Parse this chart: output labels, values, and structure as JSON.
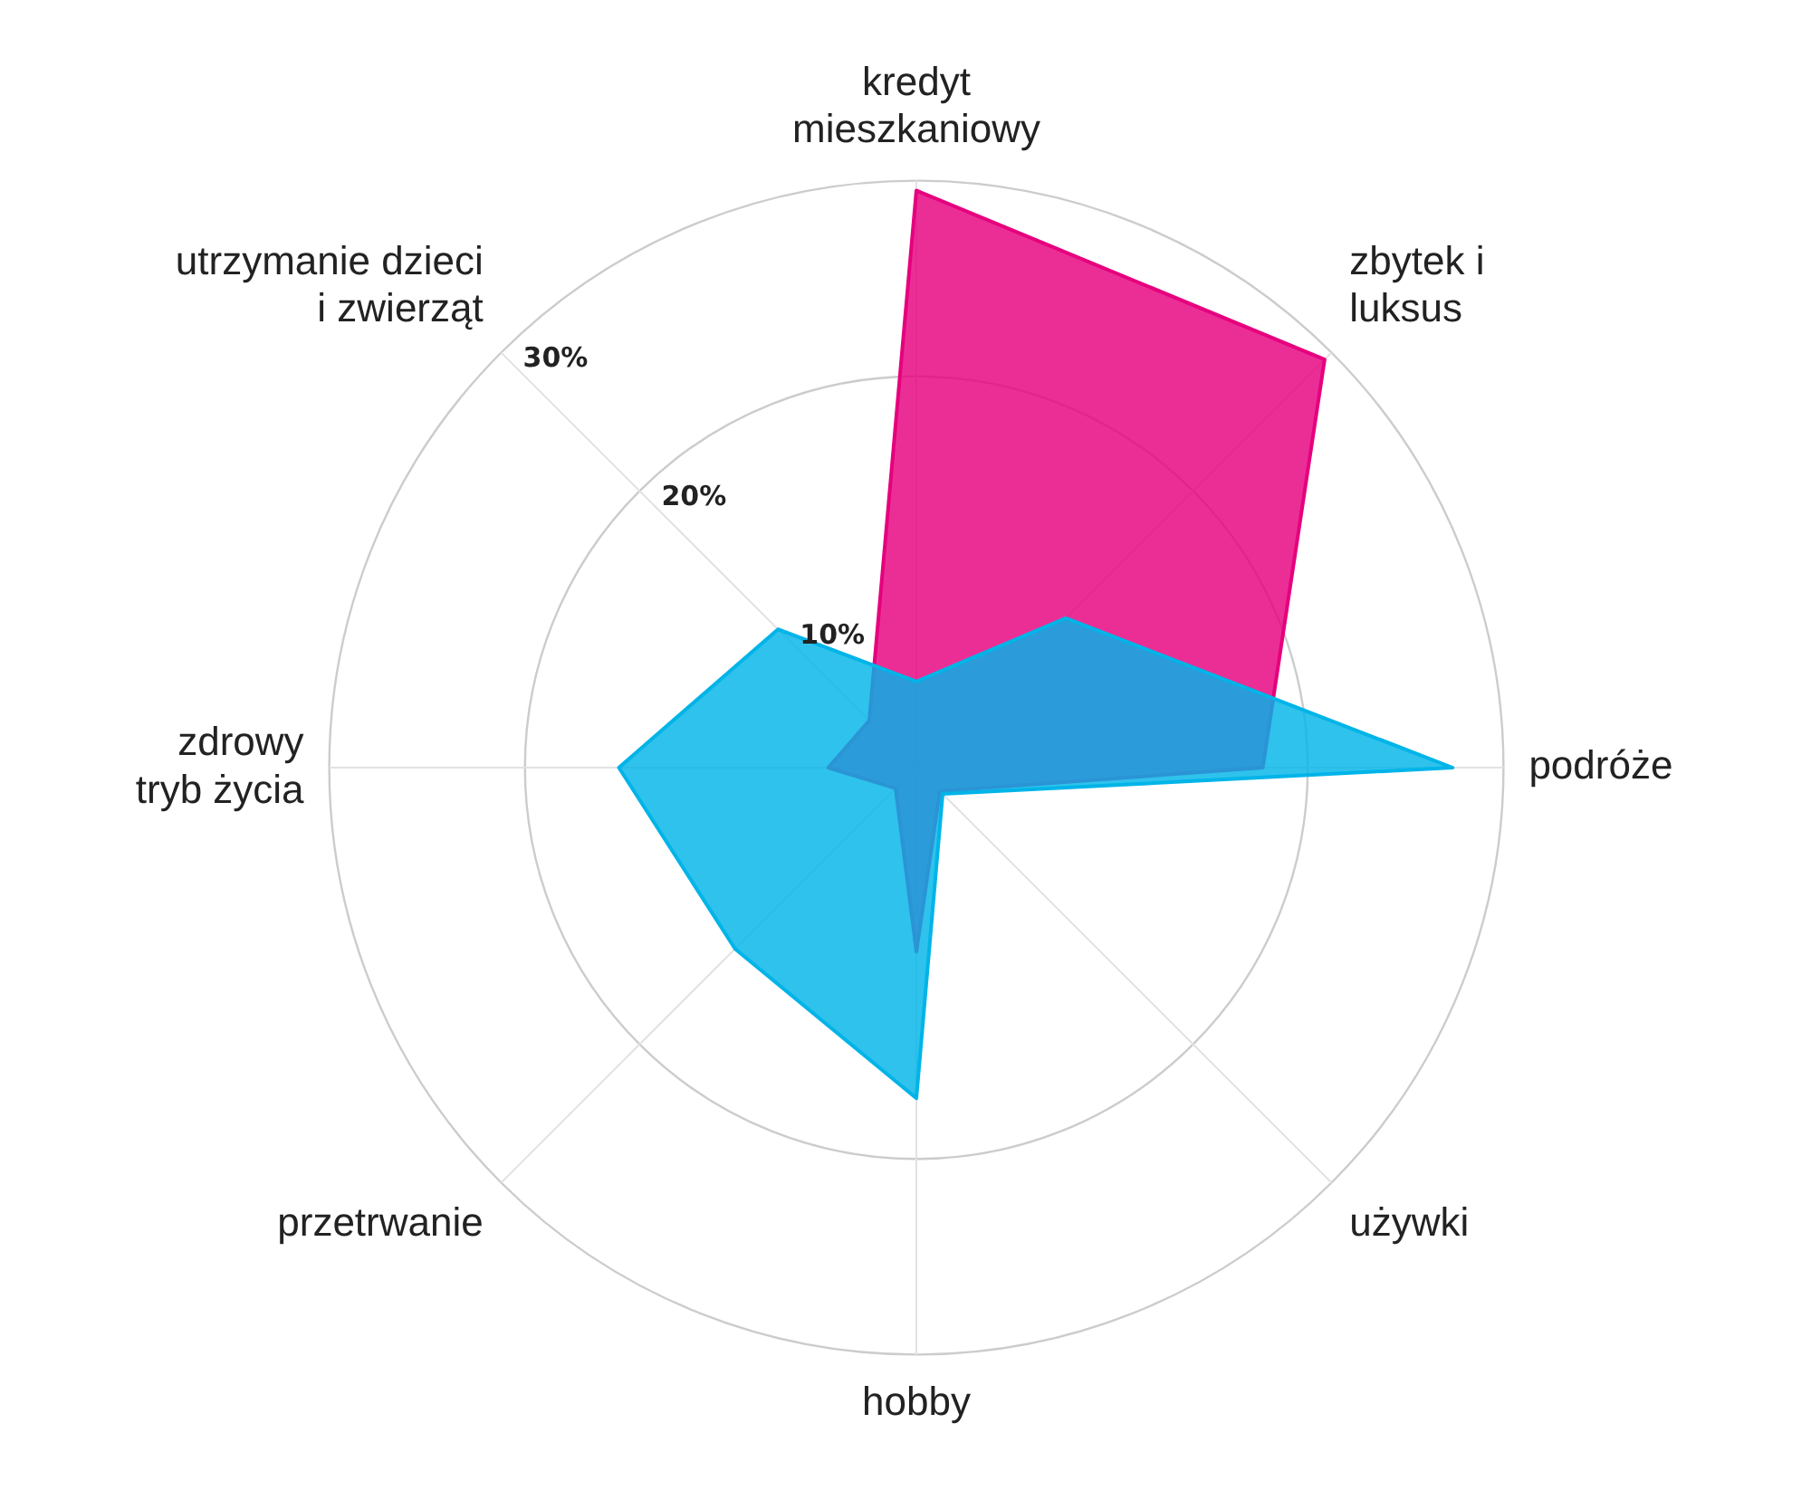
{
  "chart_data": {
    "type": "radar",
    "categories": [
      "kredyt mieszkaniowy",
      "zbytek i luksus",
      "podróże",
      "używki",
      "hobby",
      "przetrwanie",
      "zdrowy tryb życia",
      "utrzymanie dzieci i zwierząt"
    ],
    "series": [
      {
        "color": "#00b4e8",
        "values": [
          4.4,
          10.8,
          27.4,
          1.9,
          16.9,
          13.1,
          15.2,
          10
        ]
      },
      {
        "color": "#e6007e",
        "values": [
          29.5,
          29.5,
          17.7,
          1.7,
          9.4,
          1.5,
          4.5,
          3.4
        ]
      }
    ],
    "ylim": [
      0,
      30
    ],
    "yticks": [
      {
        "value": 10,
        "label": "10%"
      },
      {
        "value": 20,
        "label": "20%"
      },
      {
        "value": 30,
        "label": "30%"
      }
    ],
    "grid": true,
    "legend": false,
    "marker": "none"
  }
}
